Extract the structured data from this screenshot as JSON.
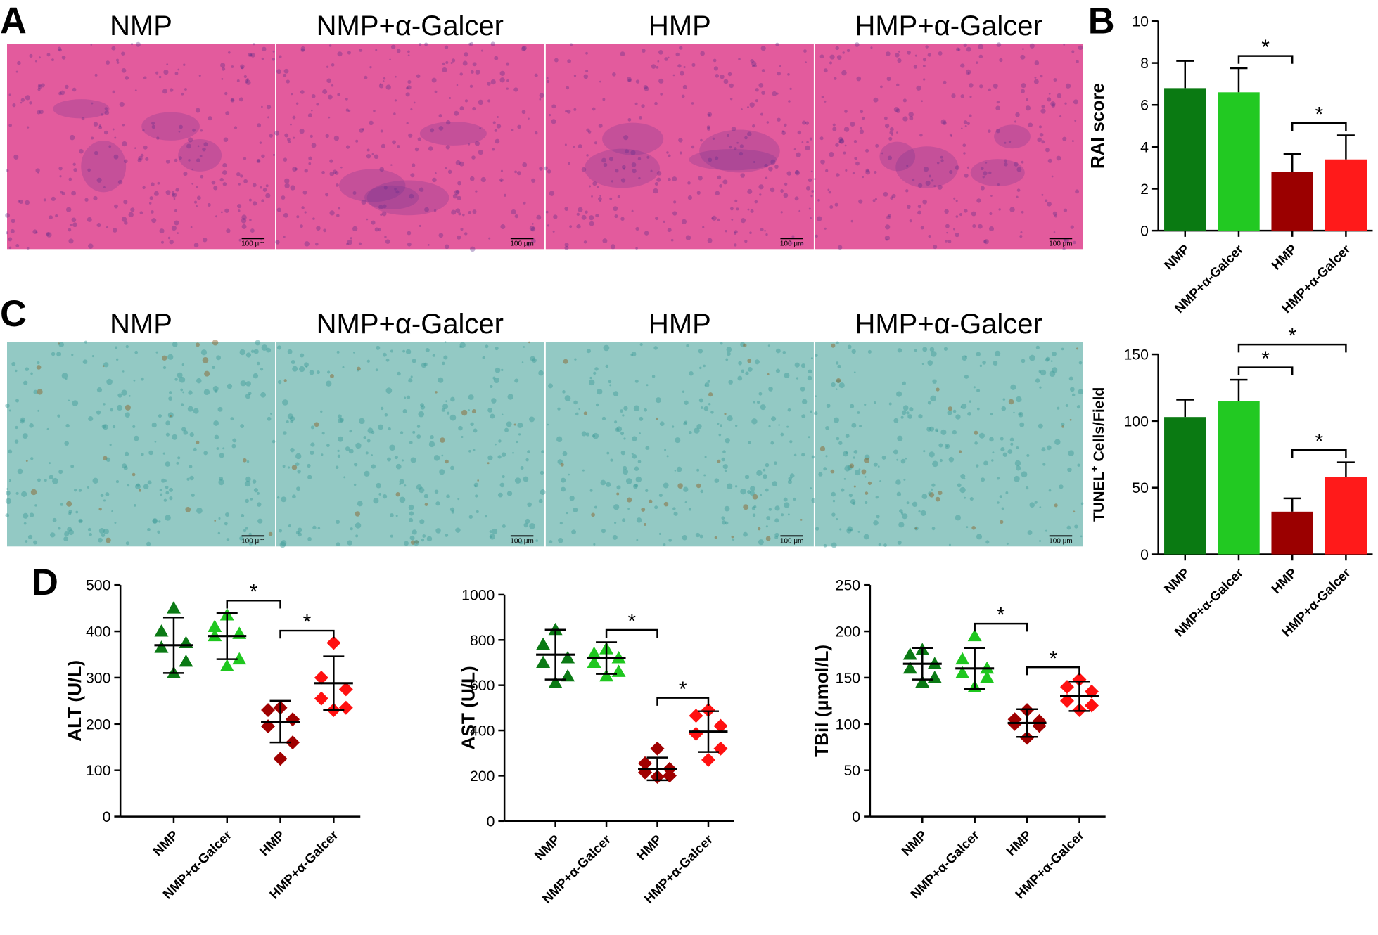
{
  "panels": {
    "A": {
      "letter": "A",
      "titles": [
        "NMP",
        "NMP+α-Galcer",
        "HMP",
        "HMP+α-Galcer"
      ],
      "scale_bar": "100 μm"
    },
    "B": {
      "letter": "B"
    },
    "C": {
      "letter": "C",
      "titles": [
        "NMP",
        "NMP+α-Galcer",
        "HMP",
        "HMP+α-Galcer"
      ],
      "scale_bar": "100 μm"
    },
    "D": {
      "letter": "D"
    }
  },
  "chart_data": [
    {
      "type": "bar",
      "ylabel": "RAI score",
      "categories": [
        "NMP",
        "NMP+α-Galcer",
        "HMP",
        "HMP+α-Galcer"
      ],
      "values": [
        6.8,
        6.6,
        2.8,
        3.4
      ],
      "errors": [
        1.3,
        1.15,
        0.85,
        1.15
      ],
      "colors": [
        "#0a7a12",
        "#22c922",
        "#9b0000",
        "#ff1a1a"
      ],
      "ylim": [
        0,
        10
      ],
      "yticks": [
        0,
        2,
        4,
        6,
        8,
        10
      ],
      "annotations": [
        {
          "text": "*",
          "from": 1,
          "to": 2
        },
        {
          "text": "*",
          "from": 2,
          "to": 3
        }
      ]
    },
    {
      "type": "bar",
      "ylabel": {
        "main": "TUNEL",
        "sup": "+",
        "rest": " Cells/Field"
      },
      "categories": [
        "NMP",
        "NMP+α-Galcer",
        "HMP",
        "HMP+α-Galcer"
      ],
      "values": [
        103,
        115,
        32,
        58
      ],
      "errors": [
        13,
        16,
        10,
        11
      ],
      "colors": [
        "#0a7a12",
        "#22c922",
        "#9b0000",
        "#ff1a1a"
      ],
      "ylim": [
        0,
        150
      ],
      "yticks": [
        0,
        50,
        100,
        150
      ],
      "annotations": [
        {
          "text": "*",
          "from": 1,
          "to": 2
        },
        {
          "text": "*",
          "from": 1,
          "to": 3
        },
        {
          "text": "*",
          "from": 2,
          "to": 3
        }
      ]
    },
    {
      "type": "dot",
      "ylabel": "ALT (U/L)",
      "categories": [
        "NMP",
        "NMP+α-Galcer",
        "HMP",
        "HMP+α-Galcer"
      ],
      "points": [
        [
          450,
          400,
          375,
          365,
          335,
          310
        ],
        [
          435,
          410,
          395,
          390,
          340,
          325
        ],
        [
          235,
          230,
          210,
          195,
          160,
          125
        ],
        [
          375,
          300,
          275,
          255,
          235,
          230
        ]
      ],
      "means": [
        370,
        390,
        205,
        288
      ],
      "sds": [
        60,
        50,
        45,
        58
      ],
      "colors": [
        "#0b7a15",
        "#1fc71f",
        "#a00000",
        "#ff1111"
      ],
      "markers": [
        "triangle",
        "triangle",
        "diamond",
        "diamond"
      ],
      "ylim": [
        0,
        500
      ],
      "yticks": [
        0,
        100,
        200,
        300,
        400,
        500
      ],
      "annotations": [
        {
          "text": "*",
          "from": 1,
          "to": 2
        },
        {
          "text": "*",
          "from": 2,
          "to": 3
        }
      ]
    },
    {
      "type": "dot",
      "ylabel": "AST (U/L)",
      "categories": [
        "NMP",
        "NMP+α-Galcer",
        "HMP",
        "HMP+α-Galcer"
      ],
      "points": [
        [
          845,
          780,
          720,
          700,
          640,
          610
        ],
        [
          760,
          740,
          720,
          700,
          660,
          640
        ],
        [
          320,
          255,
          230,
          215,
          200,
          195
        ],
        [
          490,
          465,
          420,
          385,
          320,
          270
        ]
      ],
      "means": [
        735,
        720,
        230,
        395
      ],
      "sds": [
        110,
        70,
        50,
        90
      ],
      "colors": [
        "#0b7a15",
        "#1fc71f",
        "#a00000",
        "#ff1111"
      ],
      "markers": [
        "triangle",
        "triangle",
        "diamond",
        "diamond"
      ],
      "ylim": [
        0,
        1000
      ],
      "yticks": [
        0,
        200,
        400,
        600,
        800,
        1000
      ],
      "annotations": [
        {
          "text": "*",
          "from": 1,
          "to": 2
        },
        {
          "text": "*",
          "from": 2,
          "to": 3
        }
      ]
    },
    {
      "type": "dot",
      "ylabel": "TBil (μmol/L)",
      "categories": [
        "NMP",
        "NMP+α-Galcer",
        "HMP",
        "HMP+α-Galcer"
      ],
      "points": [
        [
          180,
          175,
          165,
          160,
          150,
          145
        ],
        [
          195,
          170,
          160,
          155,
          150,
          140
        ],
        [
          115,
          105,
          103,
          100,
          98,
          85
        ],
        [
          148,
          140,
          135,
          125,
          120,
          115
        ]
      ],
      "means": [
        165,
        160,
        101,
        130
      ],
      "sds": [
        17,
        22,
        15,
        16
      ],
      "colors": [
        "#0b7a15",
        "#1fc71f",
        "#a00000",
        "#ff1111"
      ],
      "markers": [
        "triangle",
        "triangle",
        "diamond",
        "diamond"
      ],
      "ylim": [
        0,
        250
      ],
      "yticks": [
        0,
        50,
        100,
        150,
        200,
        250
      ],
      "annotations": [
        {
          "text": "*",
          "from": 1,
          "to": 2
        },
        {
          "text": "*",
          "from": 2,
          "to": 3
        }
      ]
    }
  ]
}
